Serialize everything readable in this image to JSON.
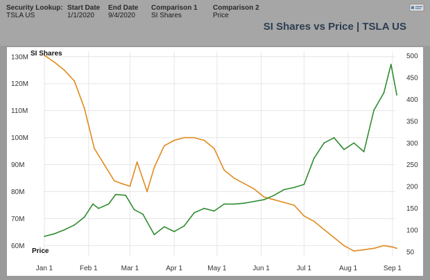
{
  "header": {
    "fields": [
      {
        "label": "Security Lookup:",
        "value": "TSLA US"
      },
      {
        "label": "Start Date",
        "value": "1/1/2020"
      },
      {
        "label": "End Date",
        "value": "9/4/2020"
      },
      {
        "label": "Comparison 1",
        "value": "SI Shares"
      },
      {
        "label": "Comparison 2",
        "value": "Price"
      }
    ],
    "title": "SI Shares vs Price | TSLA US"
  },
  "colors": {
    "si_shares": "#e08a1e",
    "price": "#2e8b2e",
    "grid": "#e6e6e6"
  },
  "chart_data": {
    "type": "line",
    "title": "SI Shares vs Price | TSLA US",
    "xlabel": "",
    "x_ticks": [
      "Jan 1",
      "Feb 1",
      "Mar 1",
      "Apr 1",
      "May 1",
      "Jun 1",
      "Jul 1",
      "Aug 1",
      "Sep 1"
    ],
    "y_left": {
      "label": "SI Shares",
      "ylim": [
        56,
        132
      ],
      "ticks": [
        "60M",
        "70M",
        "80M",
        "90M",
        "100M",
        "110M",
        "120M",
        "130M"
      ]
    },
    "y_right": {
      "label": "Price",
      "ylim": [
        40,
        510
      ],
      "ticks": [
        "50",
        "100",
        "150",
        "200",
        "250",
        "300",
        "350",
        "400",
        "450",
        "500"
      ]
    },
    "grid": true,
    "series": [
      {
        "name": "SI Shares",
        "axis": "left",
        "unit": "M",
        "x": [
          "2020-01-01",
          "2020-01-08",
          "2020-01-15",
          "2020-01-22",
          "2020-01-29",
          "2020-02-05",
          "2020-02-12",
          "2020-02-19",
          "2020-02-24",
          "2020-03-01",
          "2020-03-06",
          "2020-03-13",
          "2020-03-18",
          "2020-03-25",
          "2020-04-01",
          "2020-04-08",
          "2020-04-15",
          "2020-04-22",
          "2020-04-29",
          "2020-05-06",
          "2020-05-13",
          "2020-05-20",
          "2020-05-27",
          "2020-06-03",
          "2020-06-10",
          "2020-06-17",
          "2020-06-24",
          "2020-07-01",
          "2020-07-08",
          "2020-07-15",
          "2020-07-22",
          "2020-07-29",
          "2020-08-05",
          "2020-08-12",
          "2020-08-19",
          "2020-08-26",
          "2020-09-01",
          "2020-09-04"
        ],
        "values": [
          130.5,
          128,
          125,
          121,
          111,
          96,
          90,
          84,
          83,
          82,
          91,
          80,
          89,
          97,
          99,
          100,
          100,
          99,
          96,
          88,
          85,
          83,
          81,
          78,
          77,
          76,
          75,
          71,
          69,
          66,
          63,
          60,
          58,
          58.5,
          59,
          60,
          59.5,
          59
        ]
      },
      {
        "name": "Price",
        "axis": "right",
        "x": [
          "2020-01-01",
          "2020-01-08",
          "2020-01-15",
          "2020-01-22",
          "2020-01-29",
          "2020-02-04",
          "2020-02-08",
          "2020-02-15",
          "2020-02-20",
          "2020-02-27",
          "2020-03-04",
          "2020-03-10",
          "2020-03-18",
          "2020-03-25",
          "2020-04-01",
          "2020-04-08",
          "2020-04-15",
          "2020-04-22",
          "2020-04-29",
          "2020-05-06",
          "2020-05-13",
          "2020-05-20",
          "2020-05-27",
          "2020-06-03",
          "2020-06-10",
          "2020-06-17",
          "2020-06-24",
          "2020-07-01",
          "2020-07-08",
          "2020-07-15",
          "2020-07-22",
          "2020-07-29",
          "2020-08-05",
          "2020-08-12",
          "2020-08-19",
          "2020-08-26",
          "2020-08-31",
          "2020-09-04"
        ],
        "values": [
          86,
          92,
          101,
          112,
          130,
          160,
          150,
          160,
          182,
          180,
          147,
          137,
          90,
          108,
          97,
          110,
          140,
          150,
          144,
          160,
          160,
          162,
          166,
          170,
          180,
          193,
          198,
          205,
          265,
          300,
          312,
          285,
          300,
          280,
          375,
          415,
          480,
          410
        ]
      }
    ]
  }
}
